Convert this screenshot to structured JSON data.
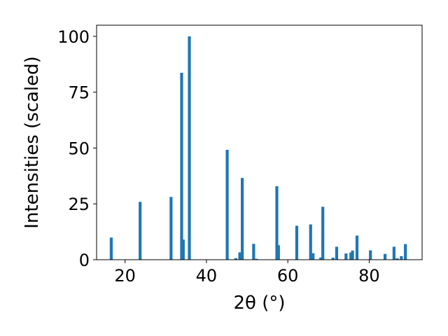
{
  "chart_data": {
    "type": "bar",
    "xlabel": "2θ (°)",
    "ylabel": "Intensities (scaled)",
    "title": "",
    "xlim": [
      13,
      93
    ],
    "ylim": [
      0,
      105
    ],
    "x_ticks": [
      20,
      40,
      60,
      80
    ],
    "y_ticks": [
      0,
      25,
      50,
      75,
      100
    ],
    "grid": false,
    "bar_color": "#1f77b4",
    "peaks": [
      {
        "x": 16.6,
        "y": 9.9
      },
      {
        "x": 23.7,
        "y": 25.9
      },
      {
        "x": 31.3,
        "y": 28.1
      },
      {
        "x": 33.9,
        "y": 83.7
      },
      {
        "x": 34.3,
        "y": 9.0
      },
      {
        "x": 35.8,
        "y": 100.0
      },
      {
        "x": 45.1,
        "y": 49.2
      },
      {
        "x": 47.2,
        "y": 0.7
      },
      {
        "x": 48.2,
        "y": 3.3
      },
      {
        "x": 48.8,
        "y": 36.6
      },
      {
        "x": 51.6,
        "y": 7.1
      },
      {
        "x": 52.3,
        "y": 0.4
      },
      {
        "x": 57.3,
        "y": 32.9
      },
      {
        "x": 57.7,
        "y": 6.5
      },
      {
        "x": 62.2,
        "y": 15.2
      },
      {
        "x": 65.6,
        "y": 15.8
      },
      {
        "x": 66.2,
        "y": 2.9
      },
      {
        "x": 68.1,
        "y": 1.0
      },
      {
        "x": 68.6,
        "y": 23.7
      },
      {
        "x": 71.1,
        "y": 0.9
      },
      {
        "x": 72.0,
        "y": 5.8
      },
      {
        "x": 74.3,
        "y": 2.8
      },
      {
        "x": 75.5,
        "y": 3.2
      },
      {
        "x": 75.9,
        "y": 4.1
      },
      {
        "x": 77.0,
        "y": 10.8
      },
      {
        "x": 80.3,
        "y": 4.2
      },
      {
        "x": 83.9,
        "y": 2.6
      },
      {
        "x": 86.1,
        "y": 5.8
      },
      {
        "x": 86.9,
        "y": 0.6
      },
      {
        "x": 87.9,
        "y": 1.6
      },
      {
        "x": 88.9,
        "y": 7.0
      }
    ]
  }
}
